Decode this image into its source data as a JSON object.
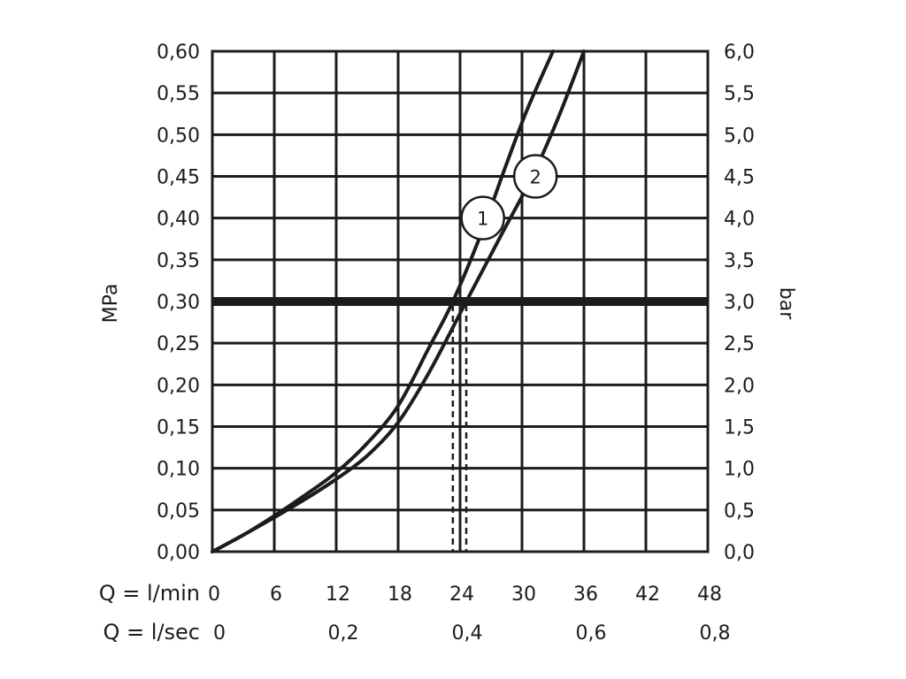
{
  "chart_data": {
    "type": "line",
    "x_unit_labels": [
      "Q = l/min",
      "Q = l/sec"
    ],
    "x_ticks_lmin": [
      "0",
      "6",
      "12",
      "18",
      "24",
      "30",
      "36",
      "42",
      "48"
    ],
    "x_ticks_lsec": [
      "0",
      "0,2",
      "0,4",
      "0,6",
      "0,8"
    ],
    "xlim": [
      0,
      48
    ],
    "ylabel_left": "MPa",
    "y_ticks_left": [
      "0,00",
      "0,05",
      "0,10",
      "0,15",
      "0,20",
      "0,25",
      "0,30",
      "0,35",
      "0,40",
      "0,45",
      "0,50",
      "0,55",
      "0,60"
    ],
    "ylim_left": [
      0,
      0.6
    ],
    "ylabel_right": "bar",
    "y_ticks_right": [
      "0,0",
      "0,5",
      "1,0",
      "1,5",
      "2,0",
      "2,5",
      "3,0",
      "3,5",
      "4,0",
      "4,5",
      "5,0",
      "5,5",
      "6,0"
    ],
    "ylim_right": [
      0,
      6.0
    ],
    "grid": true,
    "reference_line": {
      "y": 0.3
    },
    "series": [
      {
        "name": "1",
        "x": [
          0,
          3,
          6,
          9,
          12,
          15,
          18,
          21,
          23.3,
          26,
          28.5,
          30.5,
          33
        ],
        "y": [
          0,
          0.02,
          0.043,
          0.068,
          0.095,
          0.13,
          0.175,
          0.245,
          0.3,
          0.38,
          0.465,
          0.53,
          0.6
        ],
        "marker_at": [
          26.2,
          0.4
        ],
        "dashed_drop_x": 23.3
      },
      {
        "name": "2",
        "x": [
          0,
          3,
          6,
          9,
          12,
          15,
          18,
          21,
          24.6,
          28,
          31,
          33.5,
          36
        ],
        "y": [
          0,
          0.02,
          0.041,
          0.063,
          0.087,
          0.115,
          0.155,
          0.215,
          0.3,
          0.38,
          0.45,
          0.52,
          0.6
        ],
        "marker_at": [
          31.3,
          0.45
        ],
        "dashed_drop_x": 24.6
      }
    ]
  }
}
